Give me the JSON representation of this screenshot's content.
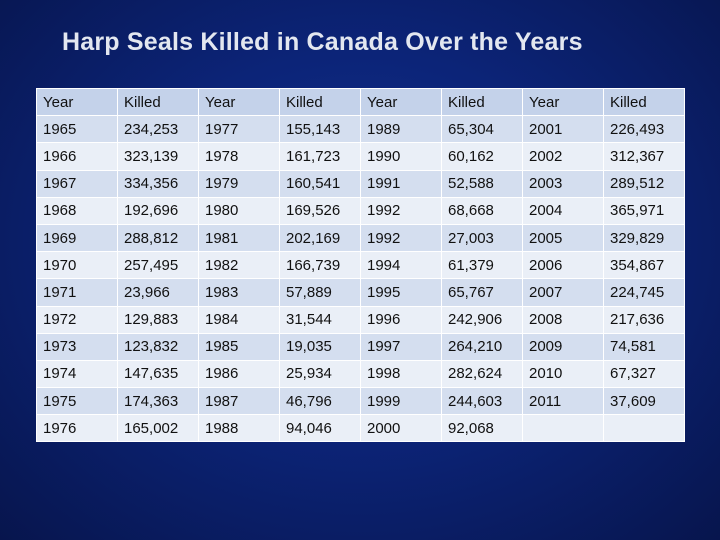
{
  "title": "Harp Seals Killed in Canada Over the Years",
  "table": {
    "header": [
      "Year",
      "Killed",
      "Year",
      "Killed",
      "Year",
      "Killed",
      "Year",
      "Killed"
    ],
    "rows": [
      [
        "1965",
        "234,253",
        "1977",
        "155,143",
        "1989",
        "65,304",
        "2001",
        "226,493"
      ],
      [
        "1966",
        "323,139",
        "1978",
        "161,723",
        "1990",
        "60,162",
        "2002",
        "312,367"
      ],
      [
        "1967",
        "334,356",
        "1979",
        "160,541",
        "1991",
        "52,588",
        "2003",
        "289,512"
      ],
      [
        "1968",
        "192,696",
        "1980",
        "169,526",
        "1992",
        "68,668",
        "2004",
        "365,971"
      ],
      [
        "1969",
        "288,812",
        "1981",
        "202,169",
        "1992",
        "27,003",
        "2005",
        "329,829"
      ],
      [
        "1970",
        "257,495",
        "1982",
        "166,739",
        "1994",
        "61,379",
        "2006",
        "354,867"
      ],
      [
        "1971",
        "23,966",
        "1983",
        "57,889",
        "1995",
        "65,767",
        "2007",
        "224,745"
      ],
      [
        "1972",
        "129,883",
        "1984",
        "31,544",
        "1996",
        "242,906",
        "2008",
        "217,636"
      ],
      [
        "1973",
        "123,832",
        "1985",
        "19,035",
        "1997",
        "264,210",
        "2009",
        "74,581"
      ],
      [
        "1974",
        "147,635",
        "1986",
        "25,934",
        "1998",
        "282,624",
        "2010",
        "67,327"
      ],
      [
        "1975",
        "174,363",
        "1987",
        "46,796",
        "1999",
        "244,603",
        "2011",
        "37,609"
      ],
      [
        "1976",
        "165,002",
        "1988",
        "94,046",
        "2000",
        "92,068",
        "",
        ""
      ]
    ]
  }
}
